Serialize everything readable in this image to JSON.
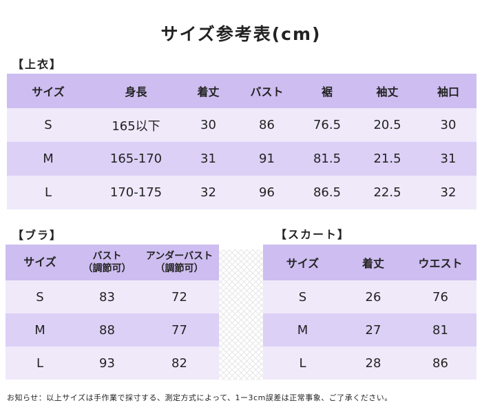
{
  "title": "サイズ参考表(cm)",
  "top": {
    "label": "【上衣】",
    "headers": [
      "サイズ",
      "身長",
      "着丈",
      "バスト",
      "裾",
      "袖丈",
      "袖口"
    ],
    "rows": [
      [
        "S",
        "165以下",
        "30",
        "86",
        "76.5",
        "20.5",
        "30"
      ],
      [
        "M",
        "165-170",
        "31",
        "91",
        "81.5",
        "21.5",
        "31"
      ],
      [
        "L",
        "170-175",
        "32",
        "96",
        "86.5",
        "22.5",
        "32"
      ]
    ]
  },
  "bra": {
    "label": "【ブラ】",
    "headers": [
      {
        "line1": "サイズ",
        "line2": ""
      },
      {
        "line1": "バスト",
        "line2": "（調節可）"
      },
      {
        "line1": "アンダーバスト",
        "line2": "（調節可）"
      }
    ],
    "rows": [
      [
        "S",
        "83",
        "72"
      ],
      [
        "M",
        "88",
        "77"
      ],
      [
        "L",
        "93",
        "82"
      ]
    ]
  },
  "skirt": {
    "label": "【スカート】",
    "headers": [
      "サイズ",
      "着丈",
      "ウエスト"
    ],
    "rows": [
      [
        "S",
        "26",
        "76"
      ],
      [
        "M",
        "27",
        "81"
      ],
      [
        "L",
        "28",
        "86"
      ]
    ]
  },
  "note": "お知らせ：以上サイズは手作業で採寸する、測定方式によって、1ー3cm誤差は正常事象、ご了承ください。",
  "colors": {
    "header": "#cdbdf0",
    "row_light": "#efe9fa",
    "row_mid": "#dcd0f6"
  }
}
